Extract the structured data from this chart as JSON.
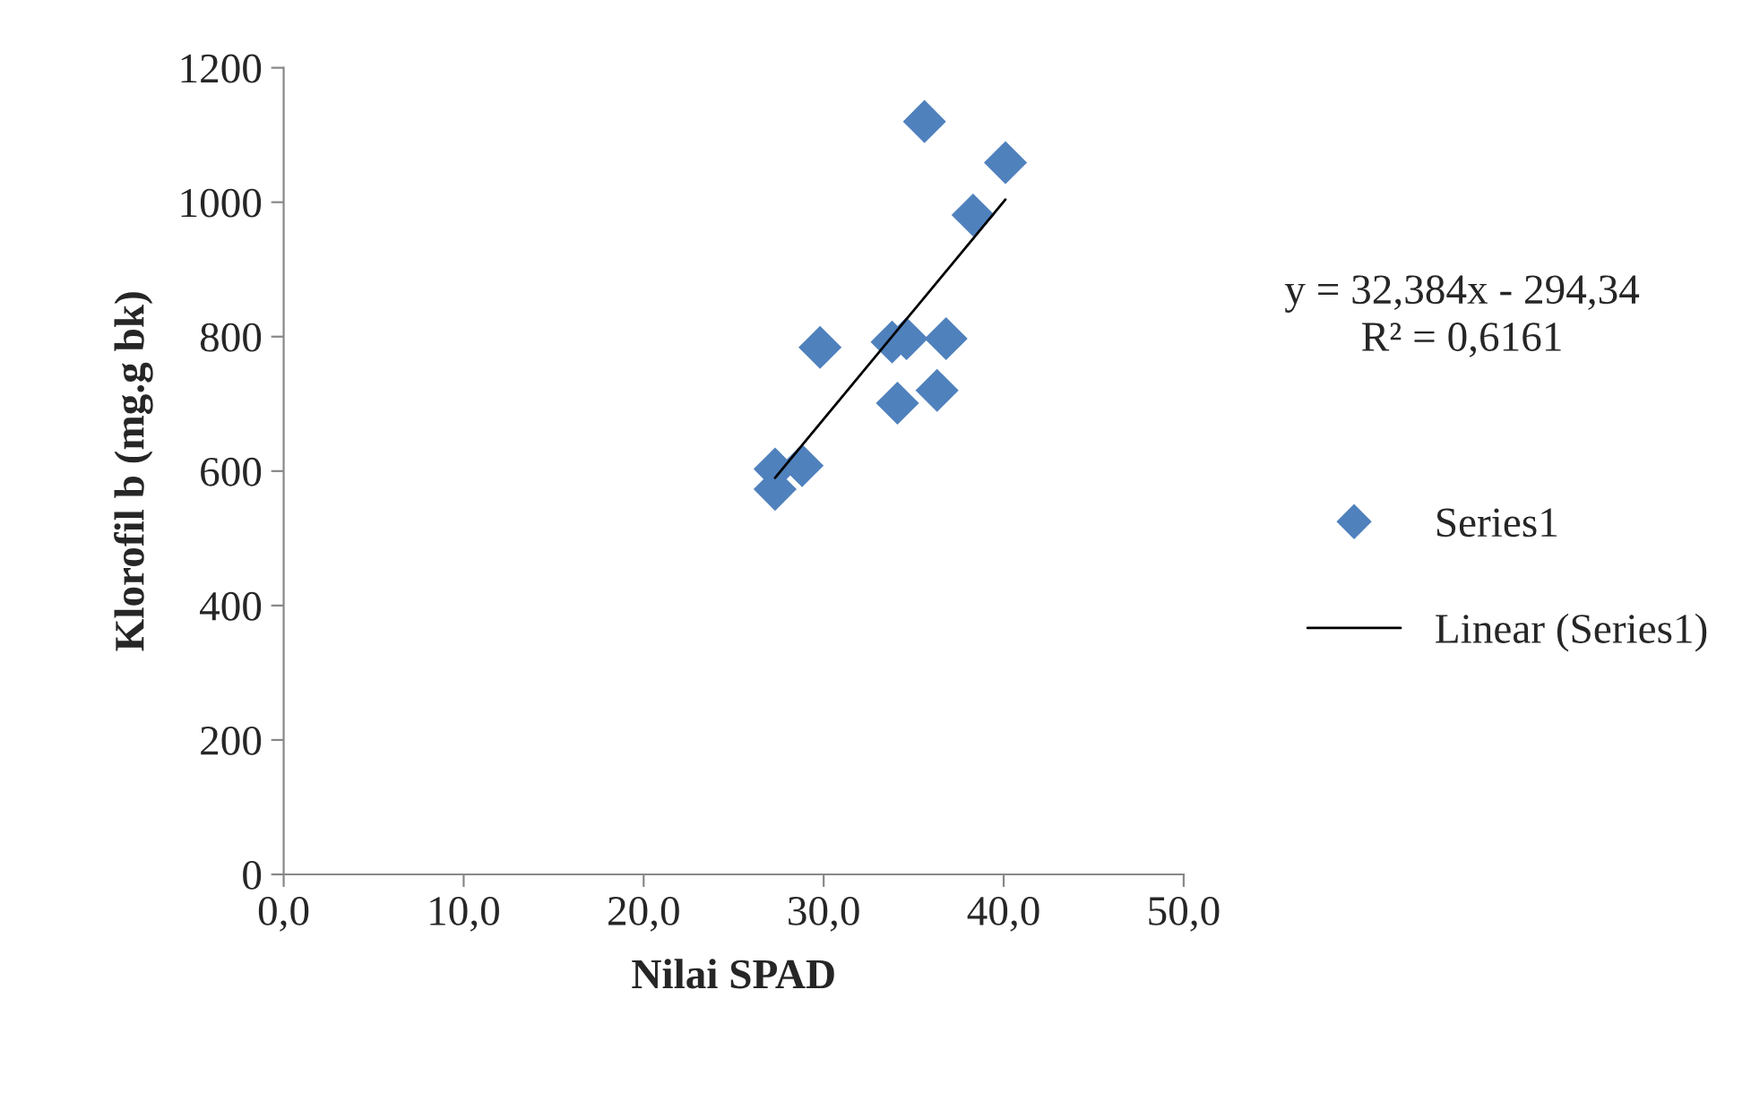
{
  "chart_data": {
    "type": "scatter",
    "xlabel": "Nilai SPAD",
    "ylabel": "Klorofil b (mg.g bk)",
    "xlim": [
      0,
      50
    ],
    "ylim": [
      0,
      1200
    ],
    "xticks": [
      {
        "value": 0,
        "label": "0,0"
      },
      {
        "value": 10,
        "label": "10,0"
      },
      {
        "value": 20,
        "label": "20,0"
      },
      {
        "value": 30,
        "label": "30,0"
      },
      {
        "value": 40,
        "label": "40,0"
      },
      {
        "value": 50,
        "label": "50,0"
      }
    ],
    "yticks": [
      0,
      200,
      400,
      600,
      800,
      1000,
      1200
    ],
    "series": [
      {
        "name": "Series1",
        "color": "#4f81bd",
        "marker": "diamond",
        "x": [
          35.6,
          40.1,
          38.3,
          29.8,
          33.8,
          34.6,
          36.8,
          34.1,
          36.3,
          28.8,
          27.3,
          27.3
        ],
        "values": [
          1120,
          1059,
          981,
          784,
          792,
          797,
          797,
          701,
          720,
          608,
          603,
          573
        ]
      },
      {
        "name": "Linear (Series1)",
        "type": "line",
        "color": "#000000",
        "marker": "none",
        "line_style": "solid",
        "x": [
          27.3,
          40.1
        ],
        "values": [
          590,
          1004
        ]
      }
    ],
    "annotations": [
      "y = 32,384x - 294,34\nR² = 0,6161"
    ],
    "legend": "right",
    "grid": false
  }
}
